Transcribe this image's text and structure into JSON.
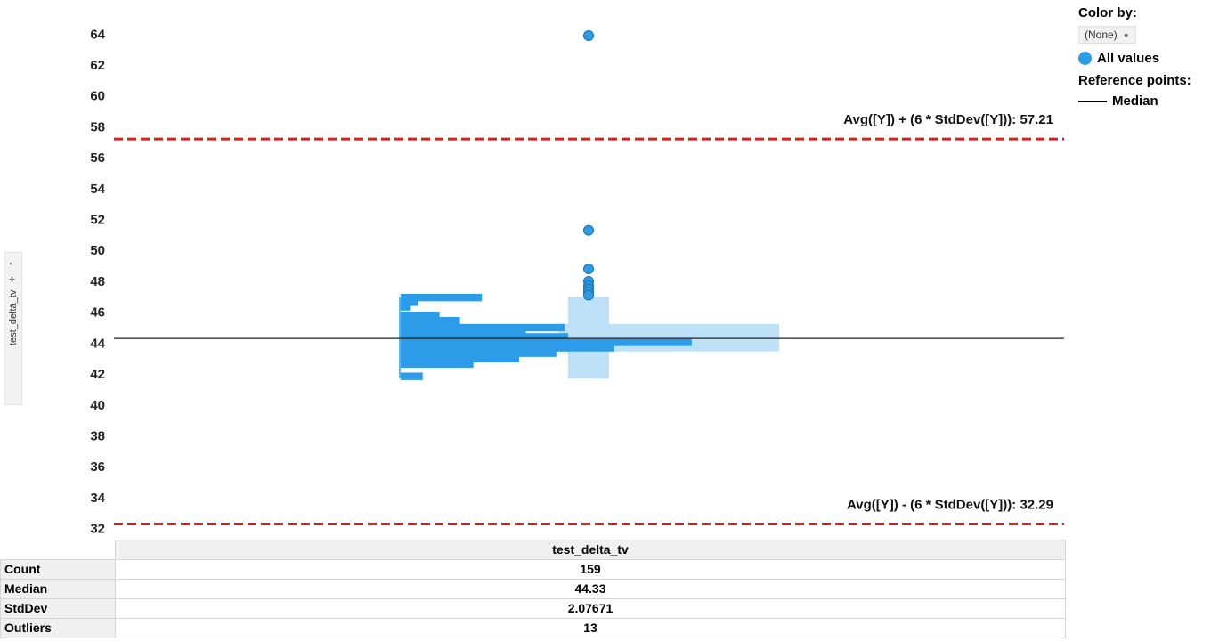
{
  "chart_data": {
    "type": "box",
    "y_column": "test_delta_tv",
    "ylim": [
      31.4,
      65.4
    ],
    "yticks": [
      "32",
      "34",
      "36",
      "38",
      "40",
      "42",
      "44",
      "46",
      "48",
      "50",
      "52",
      "54",
      "56",
      "58",
      "60",
      "62",
      "64"
    ],
    "median": 44.33,
    "histogram_range": [
      41.7,
      47.0
    ],
    "box": {
      "q1": 41.7,
      "q3": 47.0
    },
    "distribution_bins": [
      {
        "y": 46.95,
        "w": 0.48
      },
      {
        "y": 46.65,
        "w": 0.1
      },
      {
        "y": 46.35,
        "w": 0.06
      },
      {
        "y": 45.8,
        "w": 0.23
      },
      {
        "y": 45.45,
        "w": 0.35
      },
      {
        "y": 45.0,
        "w": 0.97
      },
      {
        "y": 44.7,
        "w": 0.74
      },
      {
        "y": 44.4,
        "w": 0.99
      },
      {
        "y": 44.05,
        "w": 1.72
      },
      {
        "y": 43.7,
        "w": 1.26
      },
      {
        "y": 43.35,
        "w": 0.92
      },
      {
        "y": 43.0,
        "w": 0.7
      },
      {
        "y": 42.65,
        "w": 0.43
      },
      {
        "y": 41.85,
        "w": 0.13
      }
    ],
    "outliers": [
      63.9,
      51.3,
      48.8,
      48.0,
      47.7,
      47.5,
      47.3,
      47.1
    ],
    "reference_lines": [
      {
        "label": "Avg([Y]) + (6 * StdDev([Y])): 57.21",
        "value": 57.21
      },
      {
        "label": "Avg([Y]) - (6 * StdDev([Y])): 32.29",
        "value": 32.29
      }
    ]
  },
  "axis_selector": {
    "label": "test_delta_tv",
    "plus": "+"
  },
  "legend": {
    "color_by_title": "Color by:",
    "color_by_value": "(None)",
    "all_values_label": "All values",
    "reference_points_title": "Reference points:",
    "median_label": "Median",
    "colors": {
      "points": "#2c9ce8",
      "box": "#bfe1f8",
      "ref": "#dd1c1c"
    }
  },
  "stats": {
    "column_header": "test_delta_tv",
    "rows": [
      {
        "label": "Count",
        "value": "159"
      },
      {
        "label": "Median",
        "value": "44.33"
      },
      {
        "label": "StdDev",
        "value": "2.07671"
      },
      {
        "label": "Outliers",
        "value": "13"
      }
    ]
  }
}
